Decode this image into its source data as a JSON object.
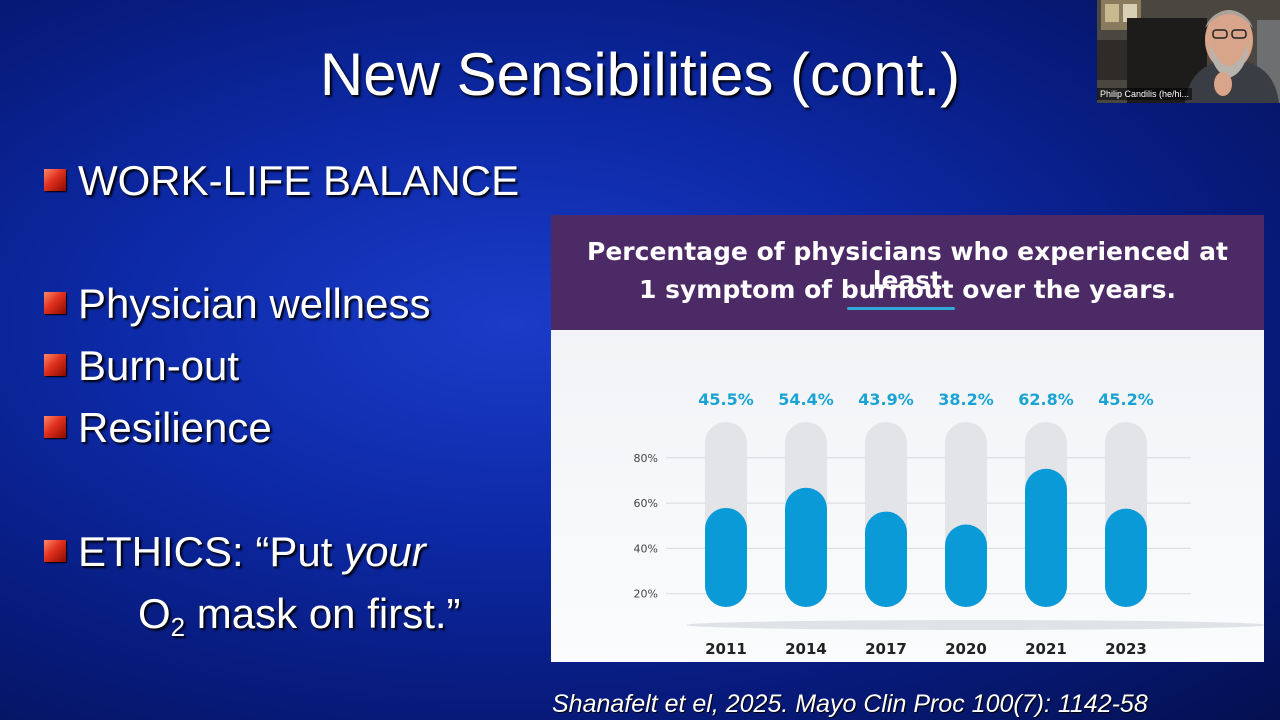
{
  "slide": {
    "title": "New Sensibilities (cont.)",
    "bullets": [
      "WORK-LIFE BALANCE",
      "Physician wellness",
      "Burn-out",
      "Resilience"
    ],
    "ethics": {
      "prefix": "ETHICS: “Put ",
      "emphasis": "your",
      "line2_pre": "O",
      "line2_sub": "2",
      "line2_post": " mask on first.”"
    },
    "citation": "Shanafelt et el, 2025. Mayo Clin Proc 100(7): 1142-58"
  },
  "chart_header": {
    "line1": "Percentage of physicians who experienced at least",
    "line2": "1 symptom of burnout over the years."
  },
  "chart_data": {
    "type": "bar",
    "title": "Percentage of physicians who experienced at least 1 symptom of burnout over the years.",
    "categories": [
      "2011",
      "2014",
      "2017",
      "2020",
      "2021",
      "2023"
    ],
    "values": [
      45.5,
      54.4,
      43.9,
      38.2,
      62.8,
      45.2
    ],
    "value_labels": [
      "45.5%",
      "54.4%",
      "43.9%",
      "38.2%",
      "62.8%",
      "45.2%"
    ],
    "y_ticks": [
      "20%",
      "40%",
      "60%",
      "80%"
    ],
    "ylim": [
      0,
      80
    ],
    "grid": true,
    "colors": {
      "bar": "#0a9ad8",
      "track": "#e2e4e8",
      "label": "#1aa3d4",
      "header": "#4b2a66"
    }
  },
  "video": {
    "participant_name": "Philip Candilis (he/hi..."
  }
}
